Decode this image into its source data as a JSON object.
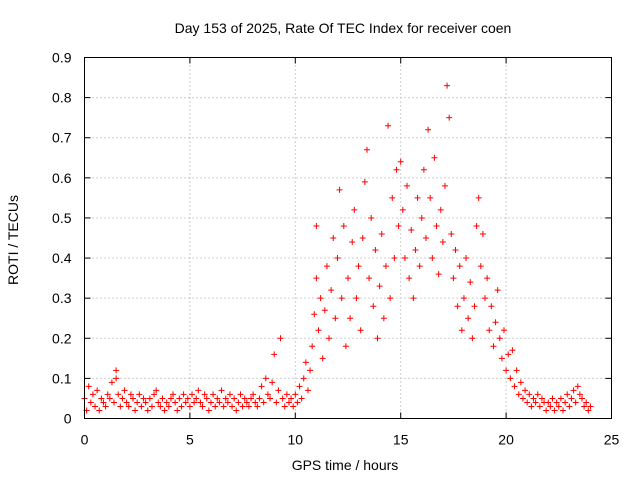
{
  "chart_data": {
    "type": "scatter",
    "title": "Day 153 of 2025, Rate Of TEC Index for receiver coen",
    "xlabel": "GPS time / hours",
    "ylabel": "ROTI / TECUs",
    "xlim": [
      0,
      25
    ],
    "ylim": [
      0,
      0.9
    ],
    "xticks": [
      "0",
      "5",
      "10",
      "15",
      "20",
      "25"
    ],
    "yticks": [
      "0",
      "0.1",
      "0.2",
      "0.3",
      "0.4",
      "0.5",
      "0.6",
      "0.7",
      "0.8",
      "0.9"
    ],
    "xtick_values": [
      0,
      5,
      10,
      15,
      20,
      25
    ],
    "ytick_values": [
      0,
      0.1,
      0.2,
      0.3,
      0.4,
      0.5,
      0.6,
      0.7,
      0.8,
      0.9
    ],
    "grid": true,
    "marker": "plus",
    "color": "#ff0000",
    "points": [
      [
        0.0,
        0.05
      ],
      [
        0.1,
        0.02
      ],
      [
        0.2,
        0.08
      ],
      [
        0.3,
        0.04
      ],
      [
        0.4,
        0.06
      ],
      [
        0.5,
        0.03
      ],
      [
        0.6,
        0.07
      ],
      [
        0.7,
        0.02
      ],
      [
        0.8,
        0.05
      ],
      [
        0.9,
        0.04
      ],
      [
        1.0,
        0.03
      ],
      [
        1.1,
        0.06
      ],
      [
        1.2,
        0.05
      ],
      [
        1.3,
        0.09
      ],
      [
        1.4,
        0.04
      ],
      [
        1.5,
        0.12
      ],
      [
        1.5,
        0.1
      ],
      [
        1.6,
        0.06
      ],
      [
        1.7,
        0.03
      ],
      [
        1.8,
        0.05
      ],
      [
        1.9,
        0.07
      ],
      [
        2.0,
        0.04
      ],
      [
        2.1,
        0.03
      ],
      [
        2.2,
        0.06
      ],
      [
        2.3,
        0.05
      ],
      [
        2.4,
        0.02
      ],
      [
        2.5,
        0.04
      ],
      [
        2.6,
        0.06
      ],
      [
        2.7,
        0.03
      ],
      [
        2.8,
        0.05
      ],
      [
        2.9,
        0.04
      ],
      [
        3.0,
        0.02
      ],
      [
        3.1,
        0.05
      ],
      [
        3.2,
        0.03
      ],
      [
        3.3,
        0.06
      ],
      [
        3.4,
        0.07
      ],
      [
        3.5,
        0.04
      ],
      [
        3.6,
        0.03
      ],
      [
        3.7,
        0.05
      ],
      [
        3.8,
        0.02
      ],
      [
        3.9,
        0.04
      ],
      [
        4.0,
        0.03
      ],
      [
        4.1,
        0.05
      ],
      [
        4.2,
        0.06
      ],
      [
        4.3,
        0.04
      ],
      [
        4.4,
        0.02
      ],
      [
        4.5,
        0.05
      ],
      [
        4.6,
        0.03
      ],
      [
        4.7,
        0.06
      ],
      [
        4.8,
        0.04
      ],
      [
        4.9,
        0.05
      ],
      [
        5.0,
        0.03
      ],
      [
        5.1,
        0.06
      ],
      [
        5.2,
        0.04
      ],
      [
        5.3,
        0.05
      ],
      [
        5.4,
        0.07
      ],
      [
        5.5,
        0.04
      ],
      [
        5.6,
        0.03
      ],
      [
        5.7,
        0.06
      ],
      [
        5.8,
        0.05
      ],
      [
        5.9,
        0.02
      ],
      [
        6.0,
        0.04
      ],
      [
        6.1,
        0.06
      ],
      [
        6.2,
        0.03
      ],
      [
        6.3,
        0.05
      ],
      [
        6.4,
        0.04
      ],
      [
        6.5,
        0.07
      ],
      [
        6.6,
        0.03
      ],
      [
        6.7,
        0.05
      ],
      [
        6.8,
        0.04
      ],
      [
        6.9,
        0.06
      ],
      [
        7.0,
        0.03
      ],
      [
        7.1,
        0.05
      ],
      [
        7.2,
        0.02
      ],
      [
        7.3,
        0.04
      ],
      [
        7.4,
        0.06
      ],
      [
        7.5,
        0.03
      ],
      [
        7.6,
        0.05
      ],
      [
        7.7,
        0.04
      ],
      [
        7.8,
        0.03
      ],
      [
        7.9,
        0.05
      ],
      [
        8.0,
        0.06
      ],
      [
        8.1,
        0.04
      ],
      [
        8.2,
        0.03
      ],
      [
        8.3,
        0.05
      ],
      [
        8.4,
        0.08
      ],
      [
        8.5,
        0.04
      ],
      [
        8.6,
        0.1
      ],
      [
        8.7,
        0.06
      ],
      [
        8.8,
        0.05
      ],
      [
        8.9,
        0.09
      ],
      [
        9.0,
        0.16
      ],
      [
        9.1,
        0.04
      ],
      [
        9.2,
        0.07
      ],
      [
        9.3,
        0.2
      ],
      [
        9.4,
        0.05
      ],
      [
        9.5,
        0.03
      ],
      [
        9.6,
        0.06
      ],
      [
        9.7,
        0.04
      ],
      [
        9.8,
        0.05
      ],
      [
        9.9,
        0.03
      ],
      [
        10.0,
        0.06
      ],
      [
        10.1,
        0.04
      ],
      [
        10.2,
        0.08
      ],
      [
        10.3,
        0.05
      ],
      [
        10.4,
        0.1
      ],
      [
        10.5,
        0.14
      ],
      [
        10.6,
        0.07
      ],
      [
        10.7,
        0.12
      ],
      [
        10.8,
        0.18
      ],
      [
        10.9,
        0.26
      ],
      [
        11.0,
        0.35
      ],
      [
        11.0,
        0.48
      ],
      [
        11.1,
        0.22
      ],
      [
        11.2,
        0.3
      ],
      [
        11.3,
        0.15
      ],
      [
        11.4,
        0.27
      ],
      [
        11.5,
        0.38
      ],
      [
        11.6,
        0.2
      ],
      [
        11.7,
        0.32
      ],
      [
        11.8,
        0.45
      ],
      [
        11.9,
        0.25
      ],
      [
        12.0,
        0.4
      ],
      [
        12.1,
        0.57
      ],
      [
        12.2,
        0.3
      ],
      [
        12.3,
        0.48
      ],
      [
        12.4,
        0.18
      ],
      [
        12.5,
        0.35
      ],
      [
        12.6,
        0.25
      ],
      [
        12.7,
        0.44
      ],
      [
        12.8,
        0.52
      ],
      [
        12.9,
        0.3
      ],
      [
        13.0,
        0.38
      ],
      [
        13.1,
        0.22
      ],
      [
        13.2,
        0.45
      ],
      [
        13.3,
        0.59
      ],
      [
        13.4,
        0.67
      ],
      [
        13.5,
        0.35
      ],
      [
        13.6,
        0.5
      ],
      [
        13.7,
        0.28
      ],
      [
        13.8,
        0.42
      ],
      [
        13.9,
        0.2
      ],
      [
        14.0,
        0.33
      ],
      [
        14.1,
        0.46
      ],
      [
        14.2,
        0.25
      ],
      [
        14.3,
        0.38
      ],
      [
        14.4,
        0.73
      ],
      [
        14.5,
        0.3
      ],
      [
        14.6,
        0.55
      ],
      [
        14.7,
        0.4
      ],
      [
        14.8,
        0.62
      ],
      [
        14.9,
        0.48
      ],
      [
        15.0,
        0.64
      ],
      [
        15.1,
        0.52
      ],
      [
        15.2,
        0.4
      ],
      [
        15.3,
        0.58
      ],
      [
        15.4,
        0.35
      ],
      [
        15.5,
        0.47
      ],
      [
        15.6,
        0.3
      ],
      [
        15.7,
        0.42
      ],
      [
        15.8,
        0.55
      ],
      [
        15.9,
        0.38
      ],
      [
        16.0,
        0.5
      ],
      [
        16.1,
        0.62
      ],
      [
        16.2,
        0.45
      ],
      [
        16.3,
        0.72
      ],
      [
        16.4,
        0.55
      ],
      [
        16.5,
        0.4
      ],
      [
        16.6,
        0.65
      ],
      [
        16.7,
        0.48
      ],
      [
        16.8,
        0.36
      ],
      [
        16.9,
        0.52
      ],
      [
        17.0,
        0.44
      ],
      [
        17.1,
        0.58
      ],
      [
        17.2,
        0.83
      ],
      [
        17.3,
        0.75
      ],
      [
        17.4,
        0.46
      ],
      [
        17.5,
        0.35
      ],
      [
        17.6,
        0.42
      ],
      [
        17.7,
        0.28
      ],
      [
        17.8,
        0.38
      ],
      [
        17.9,
        0.22
      ],
      [
        18.0,
        0.3
      ],
      [
        18.1,
        0.4
      ],
      [
        18.2,
        0.25
      ],
      [
        18.3,
        0.34
      ],
      [
        18.4,
        0.2
      ],
      [
        18.5,
        0.28
      ],
      [
        18.6,
        0.48
      ],
      [
        18.7,
        0.55
      ],
      [
        18.8,
        0.38
      ],
      [
        18.9,
        0.46
      ],
      [
        19.0,
        0.3
      ],
      [
        19.1,
        0.35
      ],
      [
        19.2,
        0.22
      ],
      [
        19.3,
        0.28
      ],
      [
        19.4,
        0.18
      ],
      [
        19.5,
        0.24
      ],
      [
        19.6,
        0.32
      ],
      [
        19.7,
        0.2
      ],
      [
        19.8,
        0.15
      ],
      [
        19.9,
        0.22
      ],
      [
        20.0,
        0.12
      ],
      [
        20.1,
        0.16
      ],
      [
        20.2,
        0.1
      ],
      [
        20.3,
        0.17
      ],
      [
        20.4,
        0.08
      ],
      [
        20.5,
        0.12
      ],
      [
        20.6,
        0.06
      ],
      [
        20.7,
        0.09
      ],
      [
        20.8,
        0.05
      ],
      [
        20.9,
        0.07
      ],
      [
        21.0,
        0.04
      ],
      [
        21.1,
        0.06
      ],
      [
        21.2,
        0.03
      ],
      [
        21.3,
        0.05
      ],
      [
        21.4,
        0.04
      ],
      [
        21.5,
        0.06
      ],
      [
        21.6,
        0.03
      ],
      [
        21.7,
        0.05
      ],
      [
        21.8,
        0.04
      ],
      [
        21.9,
        0.02
      ],
      [
        22.0,
        0.04
      ],
      [
        22.1,
        0.03
      ],
      [
        22.2,
        0.05
      ],
      [
        22.3,
        0.02
      ],
      [
        22.4,
        0.04
      ],
      [
        22.5,
        0.03
      ],
      [
        22.6,
        0.05
      ],
      [
        22.7,
        0.02
      ],
      [
        22.8,
        0.04
      ],
      [
        22.9,
        0.06
      ],
      [
        23.0,
        0.03
      ],
      [
        23.1,
        0.05
      ],
      [
        23.2,
        0.07
      ],
      [
        23.3,
        0.04
      ],
      [
        23.4,
        0.08
      ],
      [
        23.5,
        0.06
      ],
      [
        23.6,
        0.05
      ],
      [
        23.7,
        0.03
      ],
      [
        23.8,
        0.04
      ],
      [
        23.9,
        0.02
      ],
      [
        24.0,
        0.03
      ]
    ]
  }
}
